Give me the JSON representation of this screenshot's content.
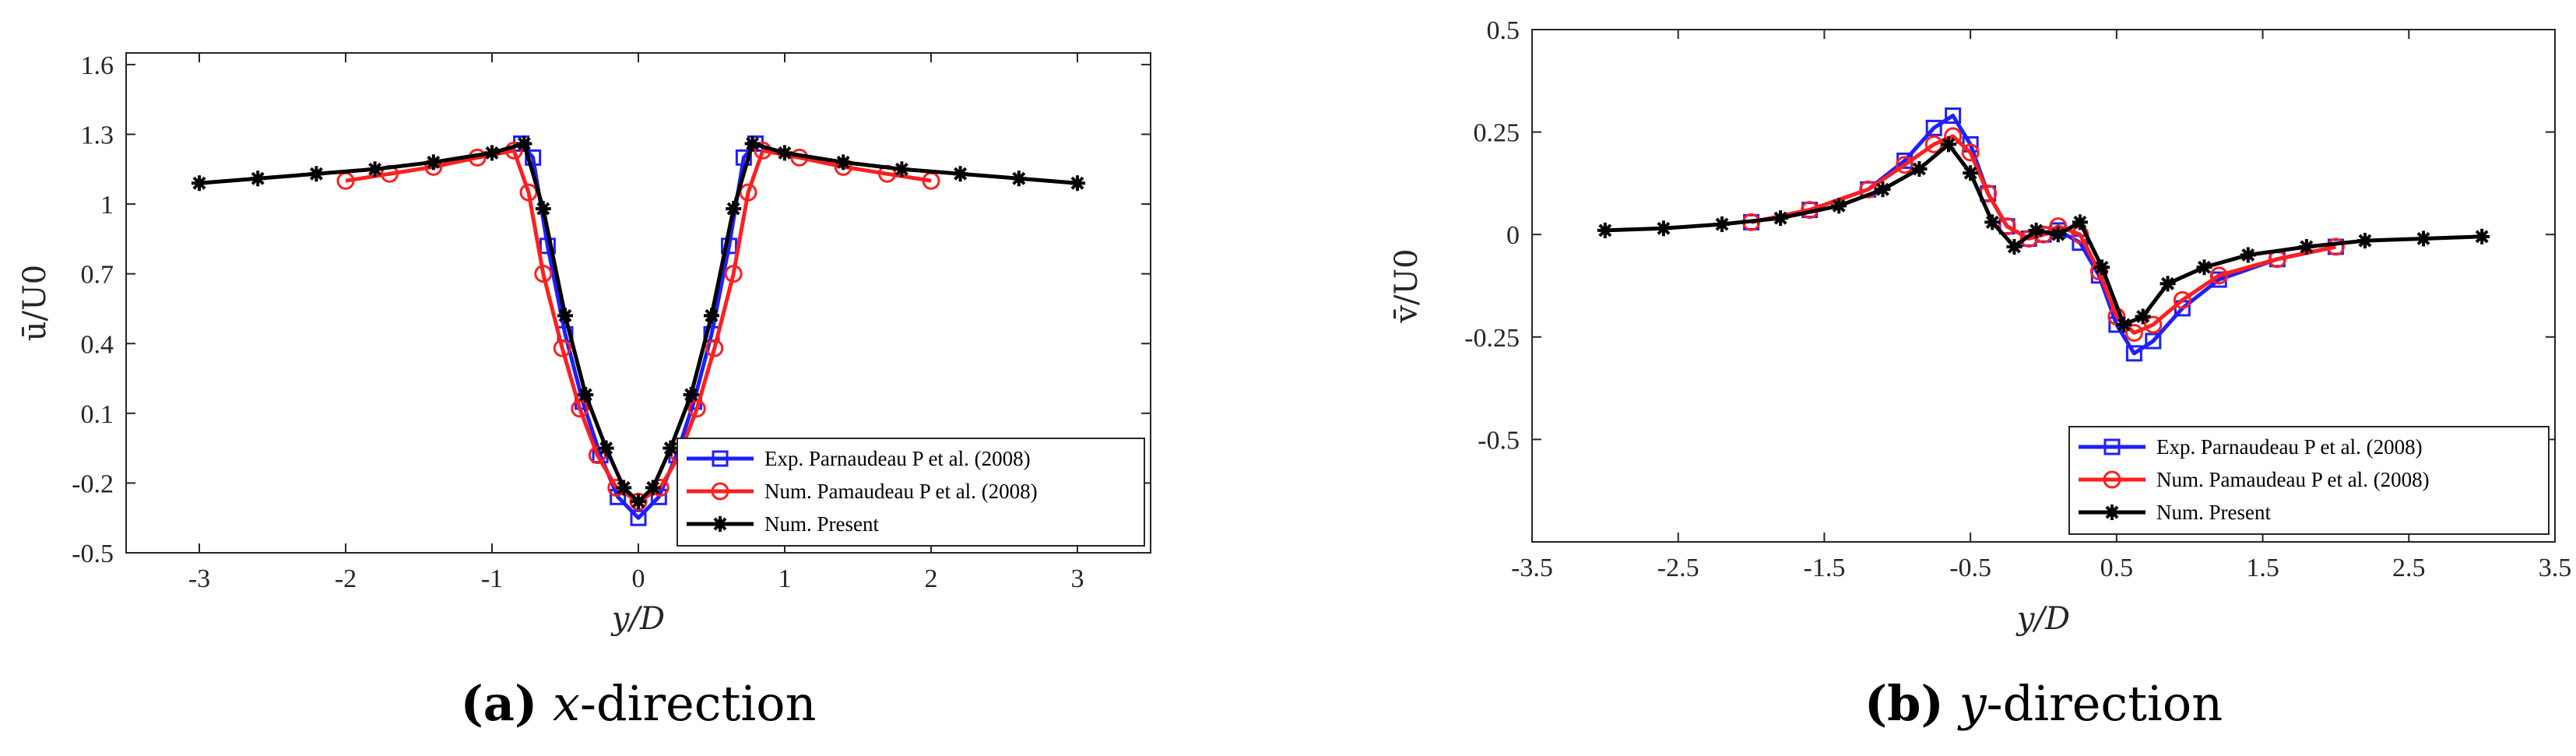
{
  "chart_data": [
    {
      "type": "line",
      "panel": "a",
      "caption": {
        "label": "(a)",
        "var": "x",
        "rest": "-direction"
      },
      "xlabel": "y/D",
      "ylabel": "ū/U0",
      "xlim": [
        -3.5,
        3.5
      ],
      "ylim": [
        -0.5,
        1.65
      ],
      "xticks": [
        -3,
        -2,
        -1,
        0,
        1,
        2,
        3
      ],
      "xtick_labels": [
        "-3",
        "-2",
        "-1",
        "0",
        "1",
        "2",
        "3"
      ],
      "yticks": [
        -0.5,
        -0.2,
        0.1,
        0.4,
        0.7,
        1.0,
        1.3,
        1.6
      ],
      "ytick_labels": [
        "-0.5",
        "-0.2",
        "0.1",
        "0.4",
        "0.7",
        "1",
        "1.3",
        "1.6"
      ],
      "legend_position": "bottom-right",
      "series": [
        {
          "name": "Exp. Parnaudeau P et al. (2008)",
          "color": "#1f1fff",
          "marker": "square",
          "x": [
            -0.8,
            -0.72,
            -0.62,
            -0.5,
            -0.38,
            -0.26,
            -0.14,
            0.0,
            0.14,
            0.26,
            0.38,
            0.5,
            0.62,
            0.72,
            0.8
          ],
          "y": [
            1.26,
            1.2,
            0.82,
            0.44,
            0.15,
            -0.08,
            -0.26,
            -0.35,
            -0.26,
            -0.08,
            0.15,
            0.44,
            0.82,
            1.2,
            1.26
          ]
        },
        {
          "name": "Num. Pamaudeau P et al. (2008)",
          "color": "#ff1f1f",
          "marker": "circle",
          "x": [
            -2.0,
            -1.7,
            -1.4,
            -1.1,
            -0.85,
            -0.75,
            -0.65,
            -0.52,
            -0.4,
            -0.28,
            -0.15,
            0.0,
            0.15,
            0.28,
            0.4,
            0.52,
            0.65,
            0.75,
            0.85,
            1.1,
            1.4,
            1.7,
            2.0
          ],
          "y": [
            1.1,
            1.13,
            1.16,
            1.2,
            1.23,
            1.05,
            0.7,
            0.38,
            0.12,
            -0.08,
            -0.22,
            -0.28,
            -0.22,
            -0.08,
            0.12,
            0.38,
            0.7,
            1.05,
            1.23,
            1.2,
            1.16,
            1.13,
            1.1
          ]
        },
        {
          "name": "Num. Present",
          "color": "#000000",
          "marker": "star",
          "x": [
            -3.0,
            -2.6,
            -2.2,
            -1.8,
            -1.4,
            -1.0,
            -0.78,
            -0.65,
            -0.5,
            -0.36,
            -0.22,
            -0.1,
            0.0,
            0.1,
            0.22,
            0.36,
            0.5,
            0.65,
            0.78,
            1.0,
            1.4,
            1.8,
            2.2,
            2.6,
            3.0
          ],
          "y": [
            1.09,
            1.11,
            1.13,
            1.15,
            1.18,
            1.22,
            1.26,
            0.98,
            0.52,
            0.18,
            -0.05,
            -0.22,
            -0.28,
            -0.22,
            -0.05,
            0.18,
            0.52,
            0.98,
            1.26,
            1.22,
            1.18,
            1.15,
            1.13,
            1.11,
            1.09
          ]
        }
      ]
    },
    {
      "type": "line",
      "panel": "b",
      "caption": {
        "label": "(b)",
        "var": "y",
        "rest": "-direction"
      },
      "xlabel": "y/D",
      "ylabel": "v̄/U0",
      "xlim": [
        -3.5,
        3.5
      ],
      "ylim": [
        -0.75,
        0.5
      ],
      "xticks": [
        -3.5,
        -2.5,
        -1.5,
        -0.5,
        0.5,
        1.5,
        2.5,
        3.5
      ],
      "xtick_labels": [
        "-3.5",
        "-2.5",
        "-1.5",
        "-0.5",
        "0.5",
        "1.5",
        "2.5",
        "3.5"
      ],
      "yticks": [
        -0.5,
        -0.25,
        0,
        0.25,
        0.5
      ],
      "ytick_labels": [
        "-0.5",
        "-0.25",
        "0",
        "0.25",
        "0.5"
      ],
      "legend_position": "bottom-right",
      "series": [
        {
          "name": "Exp. Parnaudeau P et al. (2008)",
          "color": "#1f1fff",
          "marker": "square",
          "x": [
            -2.0,
            -1.6,
            -1.2,
            -0.95,
            -0.75,
            -0.62,
            -0.5,
            -0.38,
            -0.25,
            -0.1,
            0.0,
            0.1,
            0.25,
            0.38,
            0.5,
            0.62,
            0.75,
            0.95,
            1.2,
            1.6,
            2.0
          ],
          "y": [
            0.03,
            0.06,
            0.11,
            0.18,
            0.26,
            0.29,
            0.22,
            0.1,
            0.02,
            -0.01,
            0.0,
            0.01,
            -0.02,
            -0.1,
            -0.22,
            -0.29,
            -0.26,
            -0.18,
            -0.11,
            -0.06,
            -0.03
          ]
        },
        {
          "name": "Num. Pamaudeau P et al. (2008)",
          "color": "#ff1f1f",
          "marker": "circle",
          "x": [
            -2.0,
            -1.6,
            -1.2,
            -0.95,
            -0.75,
            -0.62,
            -0.5,
            -0.38,
            -0.25,
            -0.1,
            0.0,
            0.1,
            0.25,
            0.38,
            0.5,
            0.62,
            0.75,
            0.95,
            1.2,
            1.6,
            2.0
          ],
          "y": [
            0.03,
            0.06,
            0.11,
            0.17,
            0.22,
            0.24,
            0.2,
            0.1,
            0.02,
            -0.01,
            0.0,
            0.02,
            0.0,
            -0.09,
            -0.2,
            -0.24,
            -0.22,
            -0.16,
            -0.1,
            -0.06,
            -0.03
          ]
        },
        {
          "name": "Num. Present",
          "color": "#000000",
          "marker": "star",
          "x": [
            -3.0,
            -2.6,
            -2.2,
            -1.8,
            -1.4,
            -1.1,
            -0.85,
            -0.65,
            -0.5,
            -0.35,
            -0.2,
            -0.05,
            0.1,
            0.25,
            0.4,
            0.55,
            0.68,
            0.85,
            1.1,
            1.4,
            1.8,
            2.2,
            2.6,
            3.0
          ],
          "y": [
            0.01,
            0.015,
            0.025,
            0.04,
            0.07,
            0.11,
            0.16,
            0.22,
            0.15,
            0.03,
            -0.03,
            0.01,
            0.0,
            0.03,
            -0.08,
            -0.22,
            -0.2,
            -0.12,
            -0.08,
            -0.05,
            -0.03,
            -0.015,
            -0.01,
            -0.005
          ]
        }
      ]
    }
  ]
}
